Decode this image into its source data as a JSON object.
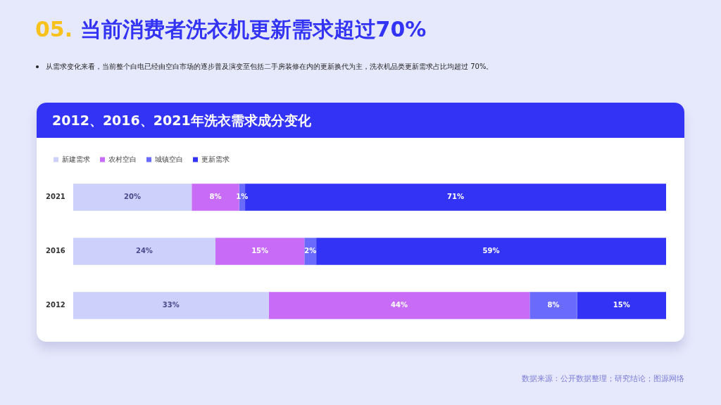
{
  "chart_data": {
    "type": "bar",
    "orientation": "horizontal",
    "stacked": true,
    "title": "05. 当前消费者洗衣机更新需求超过70%",
    "subtitle": "从需求变化来看，当前整个白电已经由空白市场的逐步普及演变至包括二手房装修在内的更新换代为主，洗衣机品类更新需求占比均超过 70%。",
    "annotations": [
      "2012、2016、2021年洗衣需求成分变化",
      "数据来源：公开数据整理；研究结论；图源网络"
    ],
    "categories": [
      "2021",
      "2016",
      "2012"
    ],
    "xlim": [
      0,
      100
    ],
    "tick_labels": "y",
    "legend": "top left",
    "grid": false,
    "series": [
      {
        "name": "新建需求",
        "color": "#cdd0fb",
        "values": [
          20,
          24,
          33
        ],
        "value_labels": [
          "20%",
          "24%",
          "33%"
        ]
      },
      {
        "name": "农村空白",
        "color": "#c86cf7",
        "values": [
          8,
          15,
          44
        ],
        "value_labels": [
          "8%",
          "15%",
          "44%"
        ]
      },
      {
        "name": "城镇空白",
        "color": "#6a6afd",
        "values": [
          1,
          2,
          8
        ],
        "value_labels": [
          "1%",
          "2%",
          "8%"
        ]
      },
      {
        "name": "更新需求",
        "color": "#3333f5",
        "values": [
          71,
          59,
          15
        ],
        "value_labels": [
          "71%",
          "59%",
          "15%"
        ]
      }
    ]
  }
}
